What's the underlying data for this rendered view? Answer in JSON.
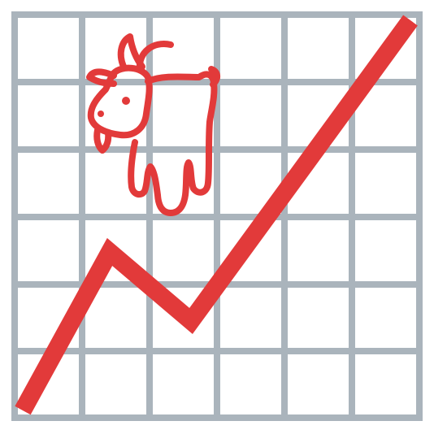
{
  "colors": {
    "background": "#ffffff",
    "grid": "#aab4bc",
    "trend": "#e23a3a",
    "goat": "#e23a3a"
  },
  "icons": {
    "trend_line": "upward-zigzag-trend-icon",
    "mascot": "goat-icon"
  }
}
